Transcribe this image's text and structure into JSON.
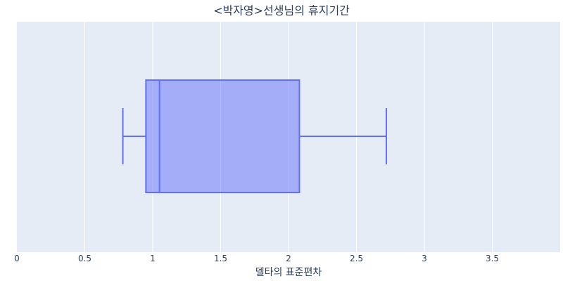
{
  "chart_data": {
    "type": "box",
    "title": "<박자영>선생님의 휴지기간",
    "xlabel": "델타의 표준편차",
    "ylabel": "",
    "xlim": [
      0,
      4
    ],
    "xticks": [
      {
        "value": 0,
        "label": "0"
      },
      {
        "value": 0.5,
        "label": "0.5"
      },
      {
        "value": 1,
        "label": "1"
      },
      {
        "value": 1.5,
        "label": "1.5"
      },
      {
        "value": 2,
        "label": "2"
      },
      {
        "value": 2.5,
        "label": "2.5"
      },
      {
        "value": 3,
        "label": "3"
      },
      {
        "value": 3.5,
        "label": "3.5"
      }
    ],
    "orientation": "horizontal",
    "grid": true,
    "box": {
      "min": 0.78,
      "q1": 0.95,
      "median": 1.05,
      "q3": 2.08,
      "max": 2.72
    },
    "colors": {
      "box_line": "#636efa",
      "box_fill": "rgba(99,110,250,0.5)",
      "plot_bg": "#e5ecf6",
      "grid": "#ffffff",
      "text": "#2a3f5f"
    }
  }
}
